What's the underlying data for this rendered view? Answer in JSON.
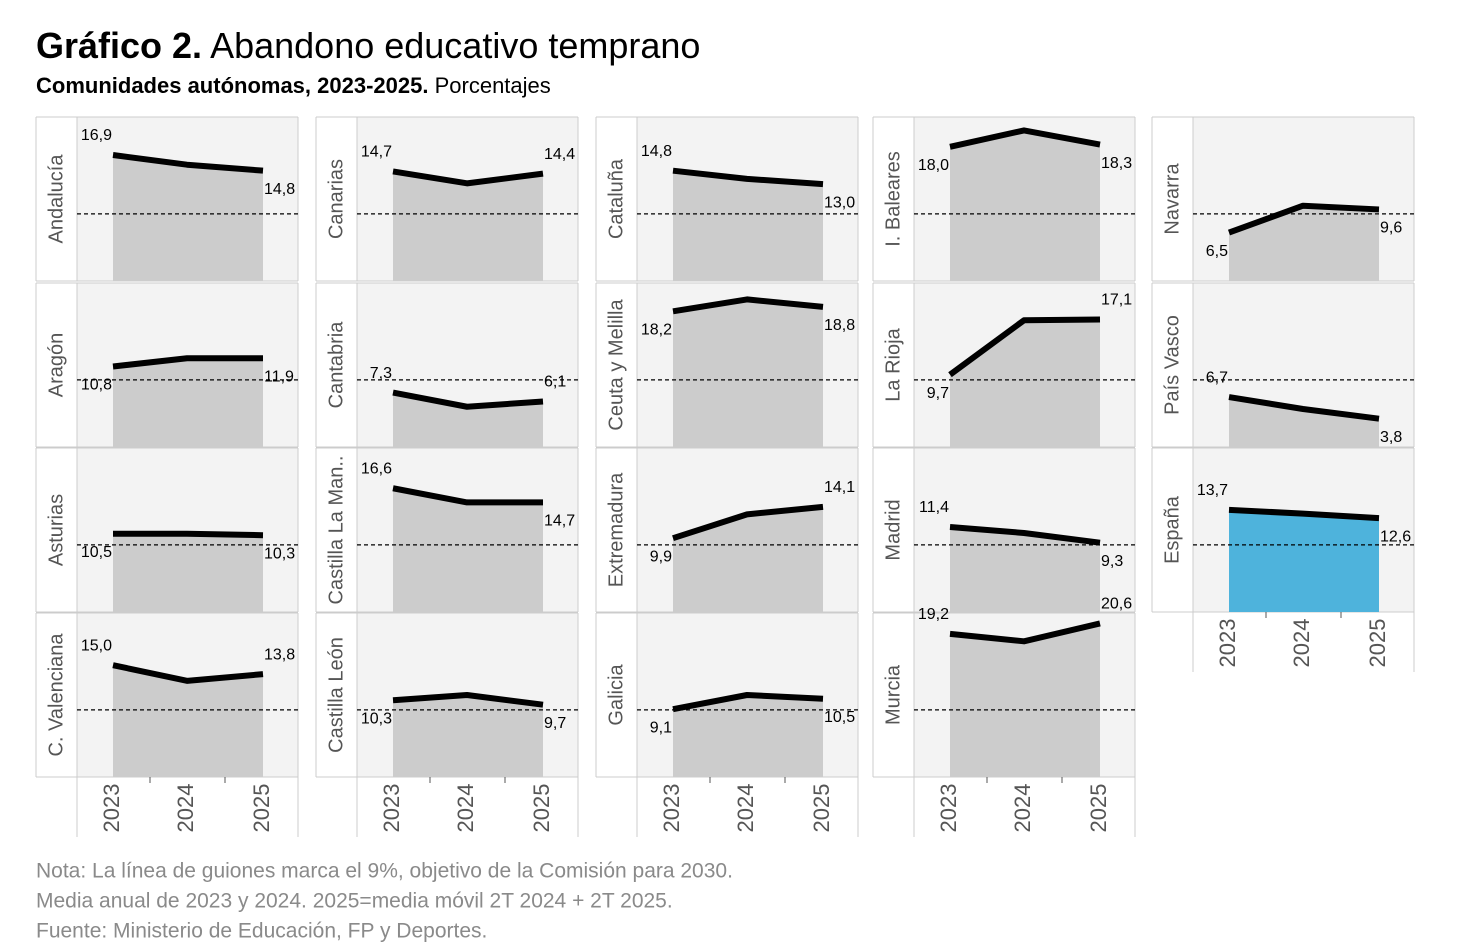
{
  "chart_data": {
    "type": "line",
    "title_prefix": "Gráfico 2.",
    "title": "Abandono educativo temprano",
    "subtitle_bold": "Comunidades autónomas, 2023-2025.",
    "subtitle": "Porcentajes",
    "categories": [
      "2023",
      "2024",
      "2025"
    ],
    "ylim": [
      0,
      22
    ],
    "reference_line": 9,
    "fill_color": "#cccccc",
    "highlight_color": "#4eb3dc",
    "line_color": "#000000",
    "panels": [
      {
        "name": "Andalucía",
        "values": [
          16.9,
          15.6,
          14.8
        ],
        "value_labels": [
          "16,9",
          null,
          "14,8"
        ]
      },
      {
        "name": "Aragón",
        "values": [
          10.8,
          11.9,
          11.9
        ],
        "value_labels": [
          "10,8",
          null,
          "11,9"
        ]
      },
      {
        "name": "Asturias",
        "values": [
          10.5,
          10.5,
          10.3
        ],
        "value_labels": [
          "10,5",
          null,
          "10,3"
        ]
      },
      {
        "name": "C. Valenciana",
        "values": [
          15.0,
          12.9,
          13.8
        ],
        "value_labels": [
          "15,0",
          null,
          "13,8"
        ]
      },
      {
        "name": "Canarias",
        "values": [
          14.7,
          13.1,
          14.4
        ],
        "value_labels": [
          "14,7",
          null,
          "14,4"
        ]
      },
      {
        "name": "Cantabria",
        "values": [
          7.3,
          5.4,
          6.1
        ],
        "value_labels": [
          "7,3",
          null,
          "6,1"
        ]
      },
      {
        "name": "Castilla La Man..",
        "values": [
          16.6,
          14.7,
          14.7
        ],
        "value_labels": [
          "16,6",
          null,
          "14,7"
        ]
      },
      {
        "name": "Castilla León",
        "values": [
          10.3,
          11.0,
          9.7
        ],
        "value_labels": [
          "10,3",
          null,
          "9,7"
        ]
      },
      {
        "name": "Cataluña",
        "values": [
          14.8,
          13.7,
          13.0
        ],
        "value_labels": [
          "14,8",
          null,
          "13,0"
        ]
      },
      {
        "name": "Ceuta y Melilla",
        "values": [
          18.2,
          19.8,
          18.8
        ],
        "value_labels": [
          "18,2",
          null,
          "18,8"
        ]
      },
      {
        "name": "Extremadura",
        "values": [
          9.9,
          13.1,
          14.1
        ],
        "value_labels": [
          "9,9",
          null,
          "14,1"
        ]
      },
      {
        "name": "Galicia",
        "values": [
          9.1,
          11.0,
          10.5
        ],
        "value_labels": [
          "9,1",
          null,
          "10,5"
        ]
      },
      {
        "name": "I. Baleares",
        "values": [
          18.0,
          20.2,
          18.3
        ],
        "value_labels": [
          "18,0",
          null,
          "18,3"
        ]
      },
      {
        "name": "La Rioja",
        "values": [
          9.7,
          17.0,
          17.1
        ],
        "value_labels": [
          "9,7",
          null,
          "17,1"
        ]
      },
      {
        "name": "Madrid",
        "values": [
          11.4,
          10.6,
          9.3
        ],
        "value_labels": [
          "11,4",
          null,
          "9,3"
        ]
      },
      {
        "name": "Murcia",
        "values": [
          19.2,
          18.2,
          20.6
        ],
        "value_labels": [
          "19,2",
          null,
          "20,6"
        ]
      },
      {
        "name": "Navarra",
        "values": [
          6.5,
          10.1,
          9.6
        ],
        "value_labels": [
          "6,5",
          null,
          "9,6"
        ]
      },
      {
        "name": "País Vasco",
        "values": [
          6.7,
          5.1,
          3.8
        ],
        "value_labels": [
          "6,7",
          null,
          "3,8"
        ]
      },
      {
        "name": "España",
        "values": [
          13.7,
          13.2,
          12.6
        ],
        "value_labels": [
          "13,7",
          null,
          "12,6"
        ],
        "highlight": true
      }
    ],
    "notes": [
      "Nota: La línea de guiones marca el 9%, objetivo de la Comisión para 2030.",
      "Media anual de 2023 y 2024. 2025=media móvil 2T 2024 + 2T 2025.",
      "Fuente: Ministerio de Educación, FP y Deportes."
    ]
  }
}
